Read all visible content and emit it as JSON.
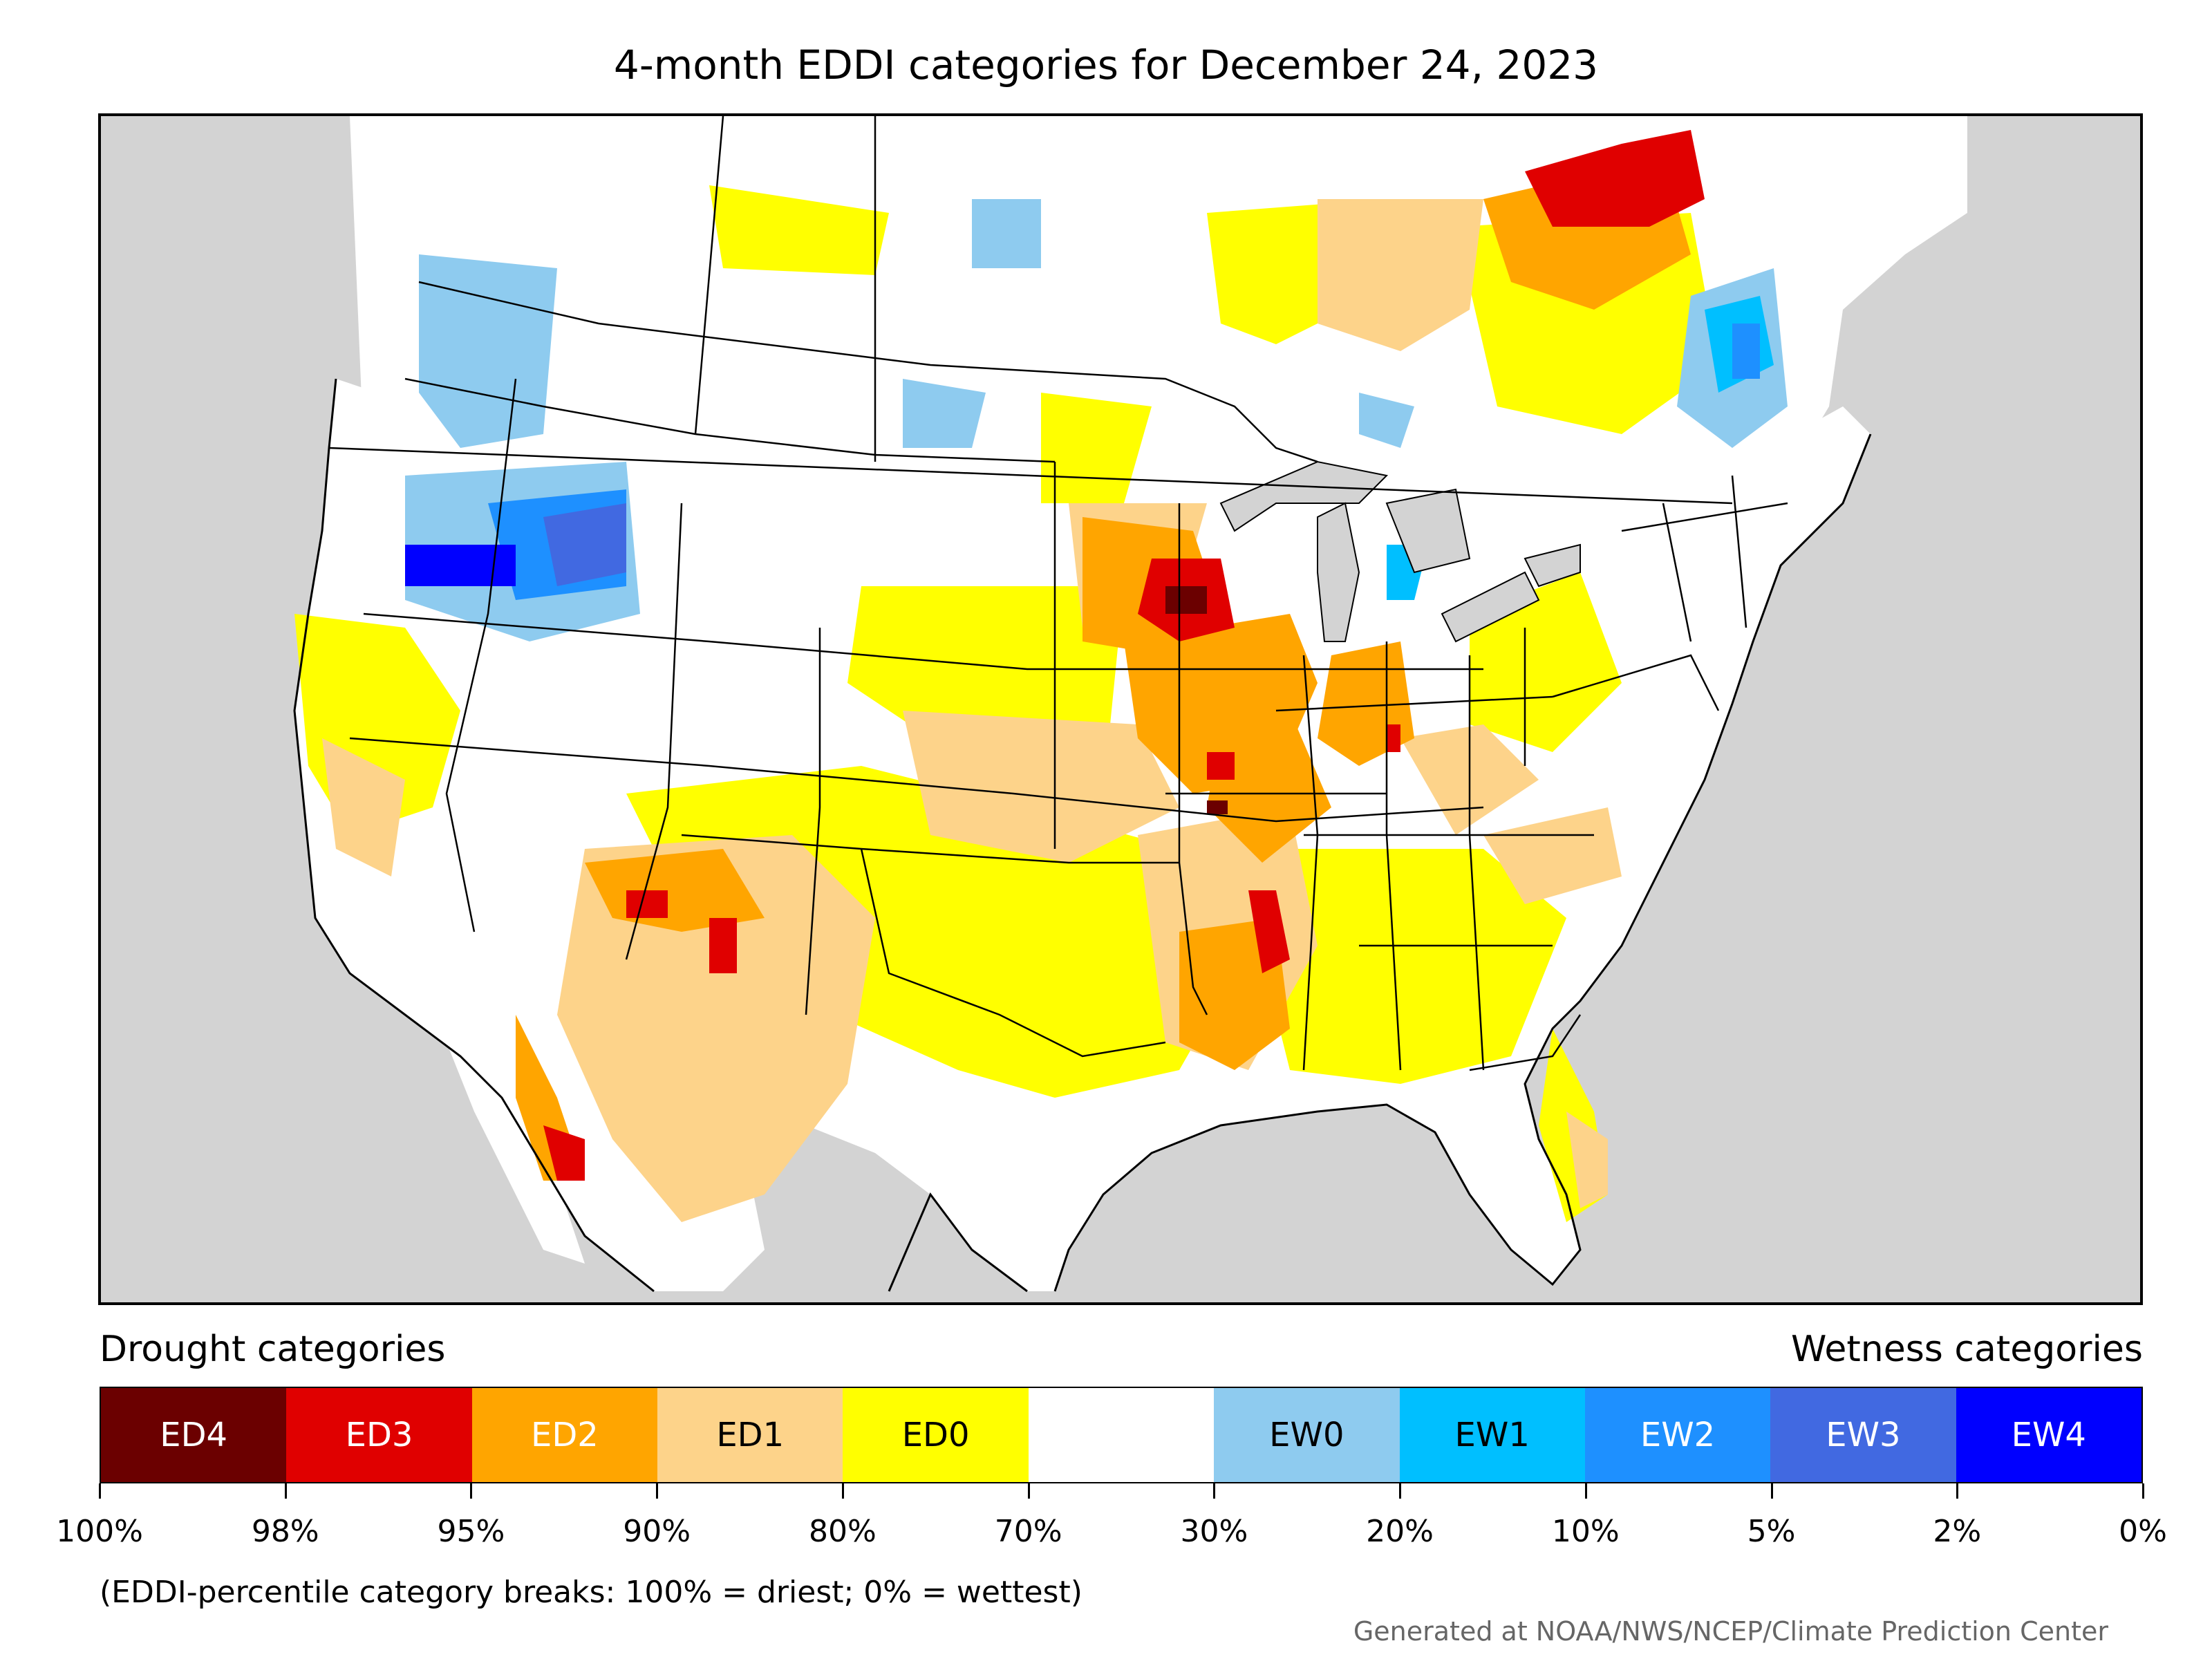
{
  "title": "4-month EDDI categories for December 24, 2023",
  "legend": {
    "drought_heading": "Drought categories",
    "wetness_heading": "Wetness categories",
    "categories": [
      {
        "label": "ED4",
        "color": "#6b0000",
        "text_color": "#ffffff"
      },
      {
        "label": "ED3",
        "color": "#e00000",
        "text_color": "#ffffff"
      },
      {
        "label": "ED2",
        "color": "#ffa500",
        "text_color": "#ffffff"
      },
      {
        "label": "ED1",
        "color": "#fdd38a",
        "text_color": "#000000"
      },
      {
        "label": "ED0",
        "color": "#ffff00",
        "text_color": "#000000"
      },
      {
        "label": "",
        "color": "#ffffff",
        "text_color": "#000000"
      },
      {
        "label": "EW0",
        "color": "#8ecbef",
        "text_color": "#000000"
      },
      {
        "label": "EW1",
        "color": "#00bfff",
        "text_color": "#000000"
      },
      {
        "label": "EW2",
        "color": "#1e90ff",
        "text_color": "#ffffff"
      },
      {
        "label": "EW3",
        "color": "#4169e1",
        "text_color": "#ffffff"
      },
      {
        "label": "EW4",
        "color": "#0000ff",
        "text_color": "#ffffff"
      }
    ],
    "breaks": [
      "100%",
      "98%",
      "95%",
      "90%",
      "80%",
      "70%",
      "30%",
      "20%",
      "10%",
      "5%",
      "2%",
      "0%"
    ],
    "note": "(EDDI-percentile category breaks: 100% = driest; 0% = wettest)"
  },
  "credit": "Generated at NOAA/NWS/NCEP/Climate Prediction Center"
}
